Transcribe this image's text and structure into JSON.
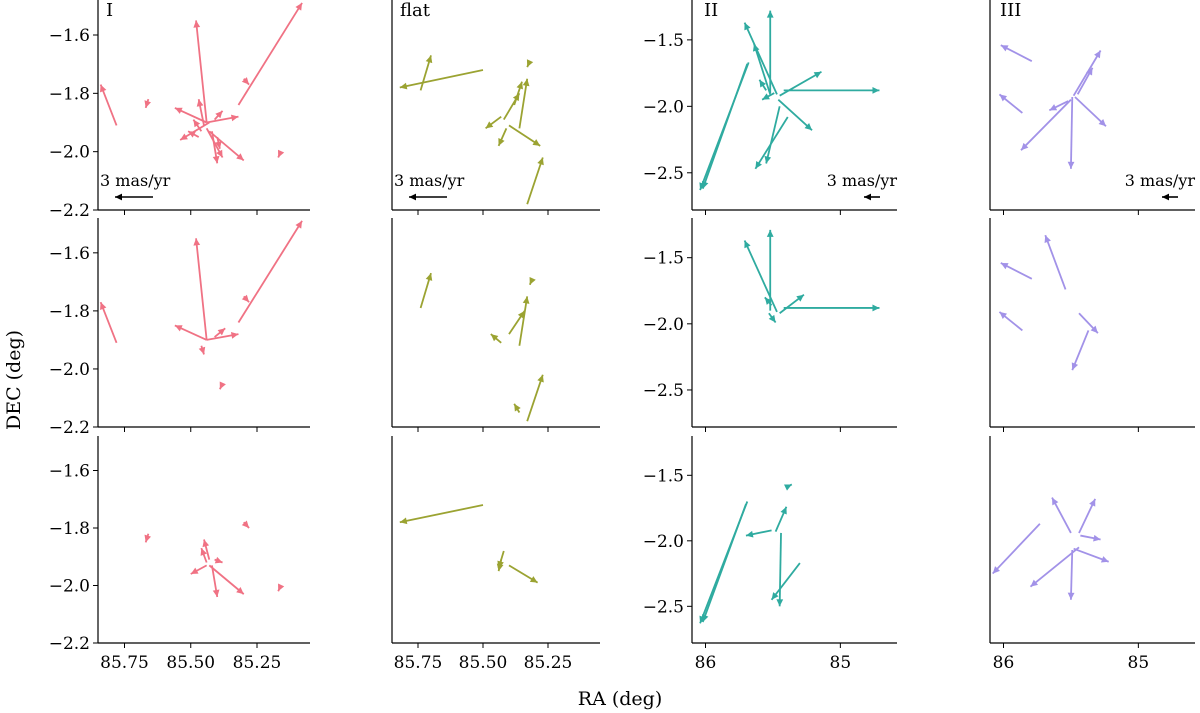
{
  "figure": {
    "xlabel": "RA (deg)",
    "ylabel": "DEC (deg)"
  },
  "chart_data": [
    {
      "type": "vector-field",
      "column": "I",
      "color": "#f07284",
      "xlim": [
        85.85,
        85.05
      ],
      "ylim": [
        -2.2,
        -1.48
      ],
      "xticks": [
        "85.75",
        "85.50",
        "85.25"
      ],
      "yticks": [
        "-1.6",
        "-1.8",
        "-2.0",
        "-2.2"
      ],
      "reference_arrow": {
        "label": "3 mas/yr",
        "length_mas_per_yr": 3
      },
      "rows": [
        {
          "vectors": [
            [
              85.78,
              -1.91,
              85.84,
              -1.77
            ],
            [
              85.32,
              -1.84,
              85.08,
              -1.49
            ],
            [
              85.44,
              -1.9,
              85.48,
              -1.55
            ],
            [
              85.44,
              -1.9,
              85.56,
              -1.85
            ],
            [
              85.44,
              -1.9,
              85.32,
              -1.88
            ],
            [
              85.44,
              -1.92,
              85.38,
              -2.02
            ],
            [
              85.43,
              -1.93,
              85.3,
              -2.03
            ],
            [
              85.45,
              -1.91,
              85.47,
              -1.82
            ],
            [
              85.43,
              -1.9,
              85.54,
              -1.96
            ],
            [
              85.42,
              -1.93,
              85.4,
              -2.04
            ],
            [
              85.46,
              -1.93,
              85.49,
              -1.89
            ],
            [
              85.41,
              -1.89,
              85.38,
              -1.86
            ],
            [
              85.66,
              -1.82,
              85.67,
              -1.85
            ],
            [
              85.3,
              -1.75,
              85.28,
              -1.77
            ],
            [
              85.16,
              -2.0,
              85.17,
              -2.02
            ],
            [
              85.47,
              -1.95,
              85.51,
              -1.93
            ],
            [
              85.4,
              -1.95,
              85.39,
              -1.99
            ]
          ]
        },
        {
          "vectors": [
            [
              85.78,
              -1.91,
              85.84,
              -1.77
            ],
            [
              85.32,
              -1.84,
              85.08,
              -1.49
            ],
            [
              85.44,
              -1.9,
              85.48,
              -1.55
            ],
            [
              85.44,
              -1.9,
              85.56,
              -1.85
            ],
            [
              85.44,
              -1.9,
              85.32,
              -1.88
            ],
            [
              85.3,
              -1.75,
              85.28,
              -1.77
            ],
            [
              85.38,
              -2.05,
              85.39,
              -2.07
            ],
            [
              85.41,
              -1.89,
              85.37,
              -1.86
            ],
            [
              85.46,
              -1.92,
              85.45,
              -1.95
            ]
          ]
        },
        {
          "vectors": [
            [
              85.44,
              -1.93,
              85.5,
              -1.96
            ],
            [
              85.43,
              -1.93,
              85.3,
              -2.03
            ],
            [
              85.42,
              -1.93,
              85.4,
              -2.04
            ],
            [
              85.44,
              -1.92,
              85.46,
              -1.87
            ],
            [
              85.41,
              -1.91,
              85.38,
              -1.92
            ],
            [
              85.66,
              -1.82,
              85.67,
              -1.85
            ],
            [
              85.3,
              -1.78,
              85.28,
              -1.8
            ],
            [
              85.16,
              -2.0,
              85.17,
              -2.02
            ],
            [
              85.43,
              -1.91,
              85.45,
              -1.84
            ]
          ]
        }
      ]
    },
    {
      "type": "vector-field",
      "column": "flat",
      "color": "#9ba332",
      "xlim": [
        85.85,
        85.05
      ],
      "ylim": [
        -2.2,
        -1.48
      ],
      "xticks": [
        "85.75",
        "85.50",
        "85.25"
      ],
      "yticks": [],
      "reference_arrow": {
        "label": "3 mas/yr",
        "length_mas_per_yr": 3
      },
      "rows": [
        {
          "vectors": [
            [
              85.5,
              -1.72,
              85.82,
              -1.78
            ],
            [
              85.74,
              -1.79,
              85.7,
              -1.67
            ],
            [
              85.33,
              -2.18,
              85.27,
              -2.02
            ],
            [
              85.36,
              -1.92,
              85.33,
              -1.75
            ],
            [
              85.4,
              -1.91,
              85.28,
              -1.98
            ],
            [
              85.42,
              -1.89,
              85.36,
              -1.8
            ],
            [
              85.43,
              -1.88,
              85.49,
              -1.92
            ],
            [
              85.41,
              -1.92,
              85.44,
              -1.98
            ],
            [
              85.38,
              -1.84,
              85.35,
              -1.76
            ],
            [
              85.32,
              -1.69,
              85.33,
              -1.71
            ]
          ]
        },
        {
          "vectors": [
            [
              85.74,
              -1.79,
              85.7,
              -1.67
            ],
            [
              85.33,
              -2.18,
              85.27,
              -2.02
            ],
            [
              85.36,
              -1.92,
              85.33,
              -1.75
            ],
            [
              85.4,
              -1.88,
              85.34,
              -1.8
            ],
            [
              85.43,
              -1.91,
              85.47,
              -1.88
            ],
            [
              85.31,
              -1.69,
              85.32,
              -1.71
            ],
            [
              85.36,
              -2.15,
              85.38,
              -2.12
            ]
          ]
        },
        {
          "vectors": [
            [
              85.5,
              -1.72,
              85.82,
              -1.78
            ],
            [
              85.4,
              -1.93,
              85.29,
              -1.99
            ],
            [
              85.42,
              -1.88,
              85.44,
              -1.94
            ],
            [
              85.43,
              -1.91,
              85.44,
              -1.95
            ]
          ]
        }
      ]
    },
    {
      "type": "vector-field",
      "column": "II",
      "color": "#2faba0",
      "xlim": [
        86.1,
        84.58
      ],
      "ylim": [
        -2.78,
        -1.2
      ],
      "xticks": [
        "86",
        "85"
      ],
      "yticks": [
        "-1.5",
        "-2.0",
        "-2.5"
      ],
      "reference_arrow": {
        "label": "3 mas/yr",
        "length_mas_per_yr": 3
      },
      "rows": [
        {
          "vectors": [
            [
              85.68,
              -1.67,
              86.04,
              -2.63
            ],
            [
              85.69,
              -1.68,
              86.02,
              -2.62
            ],
            [
              85.42,
              -1.88,
              84.71,
              -1.88
            ],
            [
              85.52,
              -1.9,
              85.52,
              -1.28
            ],
            [
              85.52,
              -1.91,
              85.64,
              -1.53
            ],
            [
              85.47,
              -1.91,
              85.71,
              -1.37
            ],
            [
              85.45,
              -1.92,
              85.14,
              -1.74
            ],
            [
              85.39,
              -2.08,
              85.63,
              -2.47
            ],
            [
              85.45,
              -2.0,
              85.55,
              -2.43
            ],
            [
              85.46,
              -1.95,
              85.21,
              -2.18
            ],
            [
              85.49,
              -1.9,
              85.58,
              -1.95
            ],
            [
              85.55,
              -1.88,
              85.6,
              -1.8
            ]
          ]
        },
        {
          "vectors": [
            [
              85.42,
              -1.88,
              84.71,
              -1.88
            ],
            [
              85.52,
              -1.9,
              85.52,
              -1.29
            ],
            [
              85.47,
              -1.91,
              85.71,
              -1.37
            ],
            [
              85.45,
              -1.92,
              85.27,
              -1.78
            ],
            [
              85.53,
              -1.92,
              85.48,
              -1.99
            ],
            [
              85.51,
              -1.86,
              85.56,
              -1.8
            ]
          ]
        },
        {
          "vectors": [
            [
              85.69,
              -1.7,
              86.04,
              -2.63
            ],
            [
              85.7,
              -1.72,
              86.02,
              -2.62
            ],
            [
              85.3,
              -2.17,
              85.51,
              -2.45
            ],
            [
              85.44,
              -1.94,
              85.45,
              -2.5
            ],
            [
              85.48,
              -1.93,
              85.4,
              -1.74
            ],
            [
              85.51,
              -1.92,
              85.7,
              -1.96
            ],
            [
              85.38,
              -1.58,
              85.36,
              -1.57
            ]
          ]
        }
      ]
    },
    {
      "type": "vector-field",
      "column": "III",
      "color": "#a292e8",
      "xlim": [
        86.1,
        84.58
      ],
      "ylim": [
        -2.78,
        -1.2
      ],
      "xticks": [
        "86",
        "85"
      ],
      "yticks": [],
      "reference_arrow": {
        "label": "3 mas/yr",
        "length_mas_per_yr": 3
      },
      "rows": [
        {
          "vectors": [
            [
              85.79,
              -1.66,
              86.02,
              -1.54
            ],
            [
              85.86,
              -2.05,
              86.03,
              -1.91
            ],
            [
              85.49,
              -1.93,
              85.5,
              -2.47
            ],
            [
              85.5,
              -1.95,
              85.87,
              -2.33
            ],
            [
              85.48,
              -1.92,
              85.28,
              -1.58
            ],
            [
              85.47,
              -1.93,
              85.24,
              -2.15
            ],
            [
              85.52,
              -1.96,
              85.66,
              -2.03
            ],
            [
              85.45,
              -1.91,
              85.34,
              -1.71
            ]
          ]
        },
        {
          "vectors": [
            [
              85.79,
              -1.66,
              86.02,
              -1.54
            ],
            [
              85.86,
              -2.05,
              86.03,
              -1.91
            ],
            [
              85.54,
              -1.74,
              85.69,
              -1.33
            ],
            [
              85.37,
              -2.05,
              85.49,
              -2.35
            ],
            [
              85.44,
              -1.92,
              85.3,
              -2.07
            ]
          ]
        },
        {
          "vectors": [
            [
              85.73,
              -1.87,
              86.08,
              -2.25
            ],
            [
              85.49,
              -2.07,
              85.5,
              -2.45
            ],
            [
              85.5,
              -1.94,
              85.64,
              -1.67
            ],
            [
              85.44,
              -1.94,
              85.32,
              -1.68
            ],
            [
              85.44,
              -2.05,
              85.8,
              -2.35
            ],
            [
              85.48,
              -2.06,
              85.22,
              -2.16
            ],
            [
              85.43,
              -1.96,
              85.28,
              -1.99
            ]
          ]
        }
      ]
    }
  ]
}
